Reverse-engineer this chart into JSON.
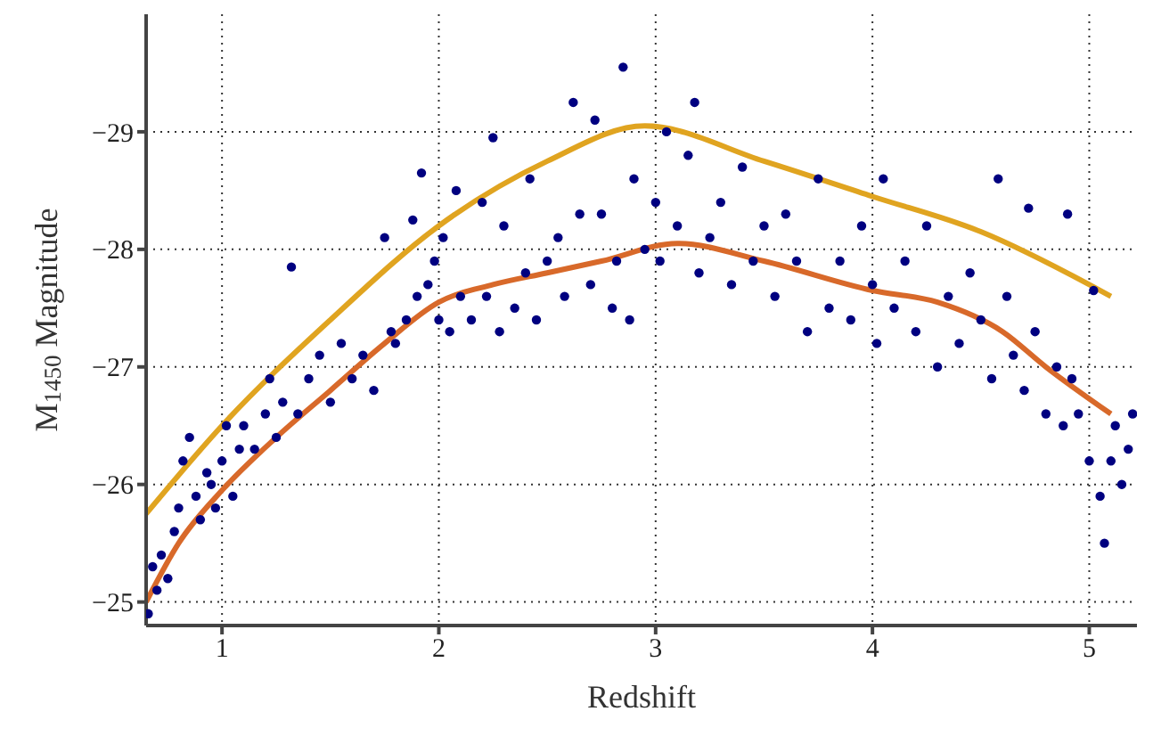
{
  "chart_data": {
    "type": "scatter",
    "xlabel": "Redshift",
    "ylabel": "M$_{1450}$ Magnitude",
    "xlim": [
      0.65,
      5.22
    ],
    "xticks": [
      1,
      2,
      3,
      4,
      5
    ],
    "ylim": [
      -24.8,
      -30
    ],
    "yticks": [
      {
        "value": -25,
        "label": "−25"
      },
      {
        "value": -26,
        "label": "−26"
      },
      {
        "value": -27,
        "label": "−27"
      },
      {
        "value": -28,
        "label": "−28"
      },
      {
        "value": -29,
        "label": "−29"
      }
    ],
    "grid": true,
    "series": [
      {
        "color": "#000080",
        "marker": "circle",
        "x": [
          0.66,
          0.68,
          0.7,
          0.72,
          0.75,
          0.78,
          0.8,
          0.82,
          0.85,
          0.88,
          0.9,
          0.93,
          0.95,
          0.97,
          1.0,
          1.02,
          1.05,
          1.08,
          1.1,
          1.15,
          1.2,
          1.22,
          1.25,
          1.28,
          1.32,
          1.35,
          1.4,
          1.45,
          1.5,
          1.55,
          1.6,
          1.65,
          1.7,
          1.75,
          1.78,
          1.8,
          1.85,
          1.88,
          1.9,
          1.92,
          1.95,
          1.98,
          2.0,
          2.02,
          2.05,
          2.08,
          2.1,
          2.15,
          2.2,
          2.22,
          2.25,
          2.28,
          2.3,
          2.35,
          2.4,
          2.42,
          2.45,
          2.5,
          2.55,
          2.58,
          2.62,
          2.65,
          2.7,
          2.72,
          2.75,
          2.8,
          2.82,
          2.85,
          2.88,
          2.9,
          2.95,
          3.0,
          3.02,
          3.05,
          3.1,
          3.15,
          3.18,
          3.2,
          3.25,
          3.3,
          3.35,
          3.4,
          3.45,
          3.5,
          3.55,
          3.6,
          3.65,
          3.7,
          3.75,
          3.8,
          3.85,
          3.9,
          3.95,
          4.0,
          4.02,
          4.05,
          4.1,
          4.15,
          4.2,
          4.25,
          4.3,
          4.35,
          4.4,
          4.45,
          4.5,
          4.55,
          4.58,
          4.62,
          4.65,
          4.7,
          4.72,
          4.75,
          4.8,
          4.85,
          4.88,
          4.9,
          4.92,
          4.95,
          5.0,
          5.02,
          5.05,
          5.07,
          5.1,
          5.12,
          5.15,
          5.18,
          5.2
        ],
        "values": [
          -24.9,
          -25.3,
          -25.1,
          -25.4,
          -25.2,
          -25.6,
          -25.8,
          -26.2,
          -26.4,
          -25.9,
          -25.7,
          -26.1,
          -26.0,
          -25.8,
          -26.2,
          -26.5,
          -25.9,
          -26.3,
          -26.5,
          -26.3,
          -26.6,
          -26.9,
          -26.4,
          -26.7,
          -27.85,
          -26.6,
          -26.9,
          -27.1,
          -26.7,
          -27.2,
          -26.9,
          -27.1,
          -26.8,
          -28.1,
          -27.3,
          -27.2,
          -27.4,
          -28.25,
          -27.6,
          -28.65,
          -27.7,
          -27.9,
          -27.4,
          -28.1,
          -27.3,
          -28.5,
          -27.6,
          -27.4,
          -28.4,
          -27.6,
          -28.95,
          -27.3,
          -28.2,
          -27.5,
          -27.8,
          -28.6,
          -27.4,
          -27.9,
          -28.1,
          -27.6,
          -29.25,
          -28.3,
          -27.7,
          -29.1,
          -28.3,
          -27.5,
          -27.9,
          -29.55,
          -27.4,
          -28.6,
          -28.0,
          -28.4,
          -27.9,
          -29.0,
          -28.2,
          -28.8,
          -29.25,
          -27.8,
          -28.1,
          -28.4,
          -27.7,
          -28.7,
          -27.9,
          -28.2,
          -27.6,
          -28.3,
          -27.9,
          -27.3,
          -28.6,
          -27.5,
          -27.9,
          -27.4,
          -28.2,
          -27.7,
          -27.2,
          -28.6,
          -27.5,
          -27.9,
          -27.3,
          -28.2,
          -27.0,
          -27.6,
          -27.2,
          -27.8,
          -27.4,
          -26.9,
          -28.6,
          -27.6,
          -27.1,
          -26.8,
          -28.35,
          -27.3,
          -26.6,
          -27.0,
          -26.5,
          -28.3,
          -26.9,
          -26.6,
          -26.2,
          -27.65,
          -25.9,
          -25.5,
          -26.2,
          -26.5,
          -26.0,
          -26.3,
          -26.6
        ]
      },
      {
        "type": "line",
        "color": "#e0a420",
        "line_style": "solid",
        "marker": "none",
        "x": [
          0.65,
          1.0,
          1.5,
          2.0,
          2.5,
          2.95,
          3.5,
          4.0,
          4.5,
          5.0,
          5.1
        ],
        "values": [
          -25.75,
          -26.5,
          -27.4,
          -28.2,
          -28.75,
          -29.05,
          -28.75,
          -28.45,
          -28.15,
          -27.7,
          -27.6
        ]
      },
      {
        "type": "line",
        "color": "#d8692a",
        "line_style": "solid",
        "marker": "none",
        "x": [
          0.65,
          0.8,
          1.0,
          1.25,
          1.5,
          1.75,
          2.0,
          2.25,
          2.5,
          2.75,
          3.1,
          3.5,
          4.0,
          4.3,
          4.6,
          4.8,
          5.1
        ],
        "values": [
          -25.0,
          -25.5,
          -25.95,
          -26.4,
          -26.8,
          -27.2,
          -27.55,
          -27.7,
          -27.8,
          -27.9,
          -28.05,
          -27.9,
          -27.65,
          -27.55,
          -27.3,
          -27.0,
          -26.6
        ]
      }
    ]
  }
}
